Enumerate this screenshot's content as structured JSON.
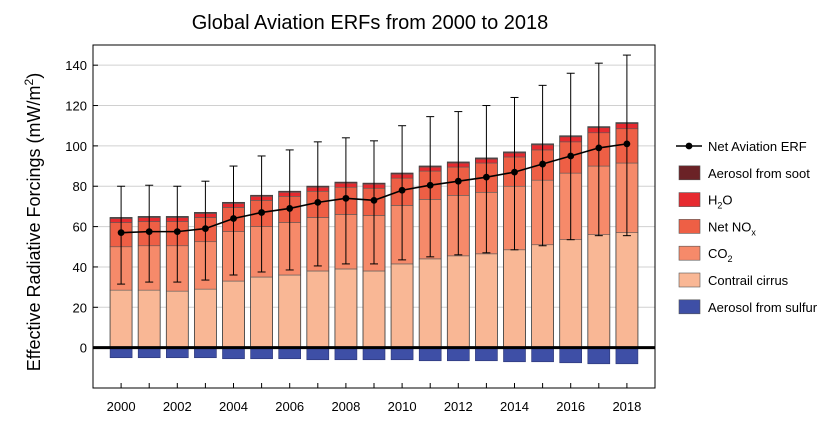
{
  "chart_data": {
    "type": "bar",
    "stacked": true,
    "title": "Global Aviation ERFs from 2000 to 2018",
    "xlabel": "",
    "ylabel": {
      "main": "Effective Radiative Forcings (mW/m",
      "sup": "2",
      "close": ")"
    },
    "ylim": [
      -20,
      150
    ],
    "xlim": [
      1999,
      2019
    ],
    "x_ticks": [
      2000,
      2002,
      2004,
      2006,
      2008,
      2010,
      2012,
      2014,
      2016,
      2018
    ],
    "y_ticks": [
      0,
      20,
      40,
      60,
      80,
      100,
      120,
      140
    ],
    "grid": "horizontal",
    "legend_position": "right",
    "legend": [
      {
        "key": "net",
        "label": "Net Aviation ERF",
        "marker": "line-dot"
      },
      {
        "key": "soot",
        "label": "Aerosol from soot",
        "marker": "box"
      },
      {
        "key": "h2o",
        "label": "H",
        "sub": "2",
        "after": "O",
        "marker": "box"
      },
      {
        "key": "nox",
        "label": "Net NO",
        "sub": "x",
        "after": "",
        "marker": "box"
      },
      {
        "key": "co2",
        "label": "CO",
        "sub": "2",
        "after": "",
        "marker": "box"
      },
      {
        "key": "contrail",
        "label": "Contrail cirrus",
        "marker": "box"
      },
      {
        "key": "sulfur",
        "label": "Aerosol from sulfur",
        "marker": "box"
      }
    ],
    "colors": {
      "contrail": "#f9b795",
      "co2": "#f68a6a",
      "nox": "#ee5f45",
      "h2o": "#e62a2f",
      "soot": "#6b2226",
      "sulfur": "#3e4fa6",
      "net": "#000000"
    },
    "x": [
      2000,
      2001,
      2002,
      2003,
      2004,
      2005,
      2006,
      2007,
      2008,
      2009,
      2010,
      2011,
      2012,
      2013,
      2014,
      2015,
      2016,
      2017,
      2018
    ],
    "series": [
      {
        "key": "contrail",
        "name": "Contrail cirrus",
        "values": [
          28.5,
          28.5,
          28,
          29,
          33,
          35,
          36,
          38,
          39,
          38,
          41.5,
          44,
          45.5,
          46.5,
          48.5,
          51,
          53.5,
          56,
          57
        ]
      },
      {
        "key": "co2",
        "name": "CO2",
        "values": [
          21.5,
          22,
          22.5,
          23.5,
          24.5,
          25,
          26,
          26.5,
          27,
          27.5,
          29,
          29.5,
          30,
          30.5,
          31.5,
          32,
          33,
          34,
          34.5
        ]
      },
      {
        "key": "nox",
        "name": "Net NOx",
        "values": [
          12,
          12,
          12,
          12,
          12,
          13,
          13,
          13,
          13.5,
          13.5,
          13.5,
          14,
          14,
          14.5,
          14.5,
          15,
          15.5,
          16.5,
          17
        ]
      },
      {
        "key": "h2o",
        "name": "H2O",
        "values": [
          2,
          2,
          2,
          2,
          2,
          2,
          2,
          2,
          2,
          2,
          2,
          2,
          2,
          2,
          2,
          2.5,
          2.5,
          2.5,
          2.5
        ]
      },
      {
        "key": "soot",
        "name": "Aerosol from soot",
        "values": [
          0.5,
          0.5,
          0.5,
          0.5,
          0.5,
          0.5,
          0.5,
          0.5,
          0.5,
          0.5,
          0.5,
          0.5,
          0.5,
          0.5,
          0.5,
          0.5,
          0.5,
          0.5,
          0.5
        ]
      },
      {
        "key": "sulfur",
        "name": "Aerosol from sulfur",
        "values": [
          -5,
          -5,
          -5,
          -5,
          -5.5,
          -5.5,
          -5.5,
          -6,
          -6,
          -6,
          -6,
          -6.5,
          -6.5,
          -6.5,
          -7,
          -7,
          -7.5,
          -8,
          -8
        ]
      }
    ],
    "net": {
      "name": "Net Aviation ERF",
      "values": [
        57,
        57.5,
        57.5,
        59,
        64,
        67,
        69,
        72,
        74,
        73,
        78,
        80.5,
        82.5,
        84.5,
        87,
        91,
        95,
        99,
        101
      ],
      "upper": [
        80,
        80.5,
        80,
        82.5,
        90,
        95,
        98,
        102,
        104,
        102.5,
        110,
        114.5,
        117,
        120,
        124,
        130,
        136,
        141,
        145
      ],
      "lower": [
        31.5,
        32.5,
        32.5,
        33.5,
        36,
        37.5,
        38.5,
        40.5,
        41.5,
        41.5,
        43.5,
        45,
        46,
        47,
        48.5,
        50.5,
        53.5,
        55.5,
        55.5
      ]
    }
  }
}
